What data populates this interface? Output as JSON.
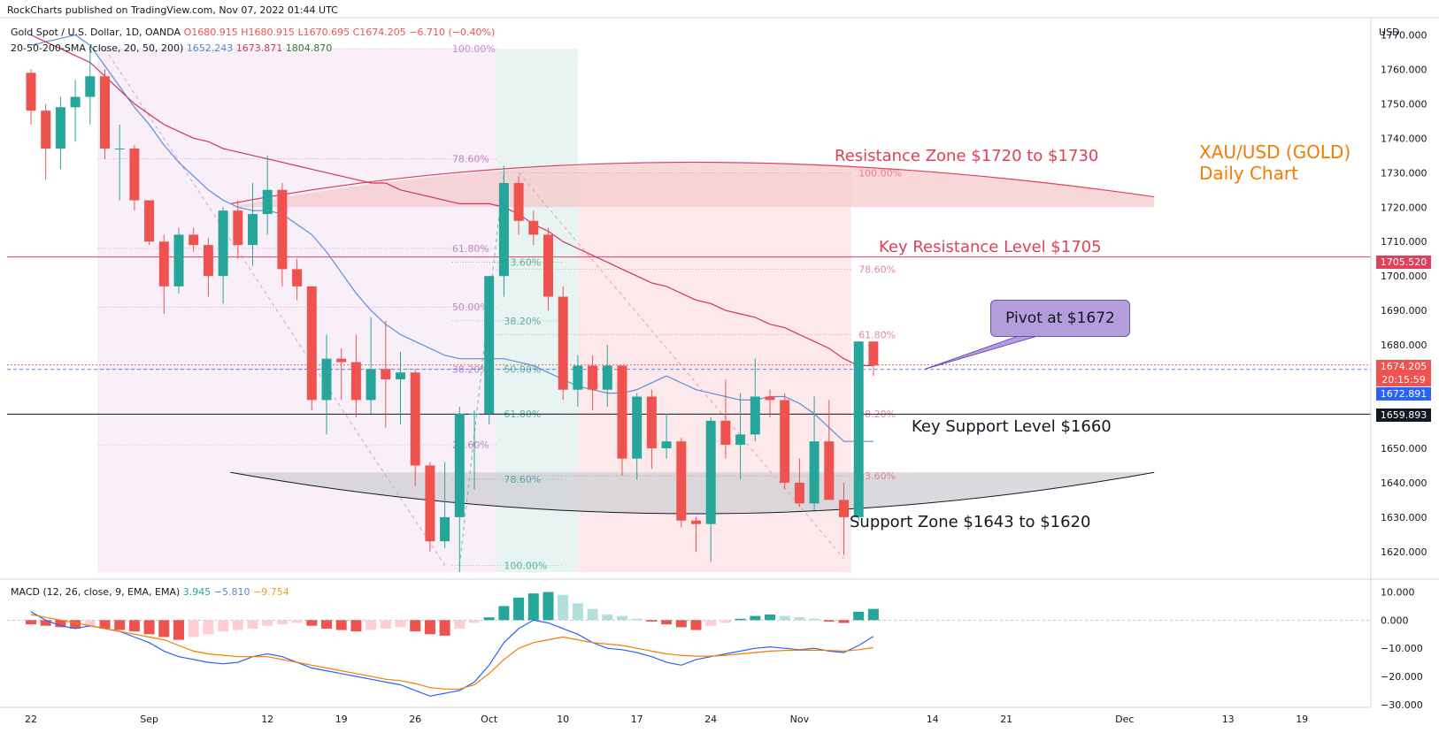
{
  "header": {
    "publisher": "RockCharts published on TradingView.com, Nov 07, 2022 01:44 UTC",
    "symbol": "Gold Spot / U.S. Dollar, 1D, OANDA",
    "open": "O1680.915",
    "high": "H1680.915",
    "low": "L1670.695",
    "close": "C1674.205",
    "change": "−6.710 (−0.40%)",
    "sma_label": "20-50-200-SMA (close, 20, 50, 200)",
    "sma20": "1652.243",
    "sma50": "1673.871",
    "sma200": "1804.870",
    "macd_label": "MACD (12, 26, close, 9, EMA, EMA)",
    "macd_hist": "3.945",
    "macd_line": "−5.810",
    "macd_signal": "−9.754"
  },
  "annotations": {
    "title": "XAU/USD (GOLD)\nDaily Chart",
    "title_line1": "XAU/USD (GOLD)",
    "title_line2": "Daily Chart",
    "resistance_zone": "Resistance Zone $1720 to $1730",
    "key_resistance": "Key Resistance Level $1705",
    "pivot": "Pivot at $1672",
    "key_support": "Key Support Level $1660",
    "support_zone": "Support Zone $1643 to $1620"
  },
  "price_tags": {
    "resistance": "1705.520",
    "last": "1674.205",
    "countdown": "20:15:59",
    "sma": "1672.891",
    "support": "1659.893"
  },
  "colors": {
    "up": "#26a69a",
    "down": "#ef5350",
    "sma20": "#5b8fd9",
    "sma50": "#d2345a",
    "resistance": "#e0405a",
    "support_zone": "#cfcfd4",
    "resistance_zone": "#f6c9cd",
    "macd_line": "#2962ff",
    "signal_line": "#f57c00",
    "fib": "#c2185b"
  },
  "chart_data": {
    "type": "candlestick",
    "price_axis": {
      "label": "USD",
      "ylim": [
        1612,
        1775
      ],
      "ticks": [
        1620,
        1630,
        1640,
        1650,
        1660,
        1670,
        1680,
        1690,
        1700,
        1710,
        1720,
        1730,
        1740,
        1750,
        1760,
        1770
      ],
      "tick_labels": [
        "1620.000",
        "1630.000",
        "1640.000",
        "1650.000",
        "1660.000",
        "1670.000",
        "1680.000",
        "1690.000",
        "1700.000",
        "1710.000",
        "1720.000",
        "1730.000",
        "1740.000",
        "1750.000",
        "1760.000",
        "1770.000"
      ]
    },
    "x_ticks": [
      {
        "label": "22",
        "bar": 0
      },
      {
        "label": "Sep",
        "bar": 8
      },
      {
        "label": "12",
        "bar": 16
      },
      {
        "label": "19",
        "bar": 21
      },
      {
        "label": "26",
        "bar": 26
      },
      {
        "label": "Oct",
        "bar": 31
      },
      {
        "label": "10",
        "bar": 36
      },
      {
        "label": "17",
        "bar": 41
      },
      {
        "label": "24",
        "bar": 46
      },
      {
        "label": "Nov",
        "bar": 52
      },
      {
        "label": "14",
        "bar": 61
      },
      {
        "label": "21",
        "bar": 66
      },
      {
        "label": "Dec",
        "bar": 74
      },
      {
        "label": "13",
        "bar": 81
      },
      {
        "label": "19",
        "bar": 86
      }
    ],
    "candles": [
      [
        1759,
        1760,
        1744,
        1748
      ],
      [
        1748,
        1750,
        1728,
        1737
      ],
      [
        1737,
        1752,
        1731,
        1749
      ],
      [
        1749,
        1757,
        1739,
        1752
      ],
      [
        1752,
        1767,
        1744,
        1758
      ],
      [
        1758,
        1760,
        1734,
        1737
      ],
      [
        1737,
        1744,
        1722,
        1737
      ],
      [
        1737,
        1738,
        1719,
        1722
      ],
      [
        1722,
        1722,
        1709,
        1710
      ],
      [
        1710,
        1712,
        1689,
        1697
      ],
      [
        1697,
        1714,
        1695,
        1712
      ],
      [
        1712,
        1714,
        1707,
        1709
      ],
      [
        1709,
        1711,
        1694,
        1700
      ],
      [
        1700,
        1720,
        1692,
        1719
      ],
      [
        1719,
        1722,
        1705,
        1709
      ],
      [
        1709,
        1727,
        1703,
        1718
      ],
      [
        1718,
        1735,
        1712,
        1725
      ],
      [
        1725,
        1727,
        1697,
        1702
      ],
      [
        1702,
        1705,
        1693,
        1697
      ],
      [
        1697,
        1697,
        1661,
        1664
      ],
      [
        1664,
        1683,
        1654,
        1676
      ],
      [
        1676,
        1679,
        1664,
        1675
      ],
      [
        1675,
        1683,
        1659,
        1664
      ],
      [
        1664,
        1688,
        1660,
        1673
      ],
      [
        1673,
        1687,
        1656,
        1670
      ],
      [
        1670,
        1678,
        1657,
        1672
      ],
      [
        1672,
        1673,
        1639,
        1645
      ],
      [
        1645,
        1646,
        1620,
        1623
      ],
      [
        1623,
        1646,
        1621,
        1630
      ],
      [
        1630,
        1662,
        1614,
        1660
      ],
      [
        1660,
        1661,
        1638,
        1660
      ],
      [
        1660,
        1700,
        1657,
        1700
      ],
      [
        1700,
        1732,
        1694,
        1727
      ],
      [
        1727,
        1729,
        1712,
        1716
      ],
      [
        1716,
        1719,
        1709,
        1712
      ],
      [
        1712,
        1714,
        1690,
        1694
      ],
      [
        1694,
        1697,
        1664,
        1667
      ],
      [
        1667,
        1677,
        1662,
        1674
      ],
      [
        1674,
        1677,
        1661,
        1667
      ],
      [
        1667,
        1680,
        1662,
        1674
      ],
      [
        1674,
        1674,
        1642,
        1647
      ],
      [
        1647,
        1666,
        1641,
        1665
      ],
      [
        1665,
        1667,
        1644,
        1650
      ],
      [
        1650,
        1660,
        1647,
        1652
      ],
      [
        1652,
        1653,
        1627,
        1629
      ],
      [
        1629,
        1630,
        1620,
        1628
      ],
      [
        1628,
        1659,
        1617,
        1658
      ],
      [
        1658,
        1670,
        1647,
        1651
      ],
      [
        1651,
        1666,
        1641,
        1654
      ],
      [
        1654,
        1676,
        1652,
        1665
      ],
      [
        1665,
        1667,
        1659,
        1664
      ],
      [
        1664,
        1666,
        1638,
        1640
      ],
      [
        1640,
        1647,
        1633,
        1634
      ],
      [
        1634,
        1665,
        1632,
        1652
      ],
      [
        1652,
        1664,
        1635,
        1635
      ],
      [
        1635,
        1640,
        1619,
        1630
      ],
      [
        1630,
        1681,
        1629,
        1681
      ],
      [
        1681,
        1681,
        1671,
        1674
      ]
    ],
    "sma20": [
      1767,
      1768,
      1769,
      1770,
      1767,
      1761,
      1755,
      1749,
      1744,
      1738,
      1733,
      1729,
      1725,
      1722,
      1720,
      1719,
      1719,
      1718,
      1715,
      1712,
      1707,
      1701,
      1695,
      1690,
      1686,
      1683,
      1681,
      1679,
      1677,
      1676,
      1676,
      1676,
      1676,
      1675,
      1674,
      1672,
      1670,
      1668,
      1667,
      1666,
      1666,
      1667,
      1669,
      1671,
      1669,
      1667,
      1666,
      1665,
      1664,
      1664,
      1665,
      1665,
      1663,
      1660,
      1656,
      1652,
      1652,
      1652
    ],
    "sma50": [
      1770,
      1768,
      1766,
      1764,
      1762,
      1758,
      1754,
      1750,
      1747,
      1744,
      1742,
      1740,
      1739,
      1737,
      1736,
      1735,
      1734,
      1733,
      1732,
      1731,
      1730,
      1729,
      1728,
      1727,
      1727,
      1725,
      1724,
      1723,
      1722,
      1721,
      1721,
      1721,
      1720,
      1718,
      1715,
      1713,
      1710,
      1708,
      1706,
      1704,
      1702,
      1700,
      1698,
      1697,
      1695,
      1693,
      1692,
      1690,
      1689,
      1688,
      1686,
      1685,
      1683,
      1681,
      1679,
      1676,
      1674,
      1674
    ],
    "resistance_zone": [
      1720,
      1730
    ],
    "key_resistance": 1705.52,
    "pivot": 1672,
    "key_support": 1659.893,
    "support_zone": [
      1620,
      1643
    ],
    "fib_levels_1": [
      {
        "label": "100.00%",
        "value": 1766
      },
      {
        "label": "78.60%",
        "value": 1734
      },
      {
        "label": "61.80%",
        "value": 1708
      },
      {
        "label": "50.00%",
        "value": 1691
      },
      {
        "label": "38.20%",
        "value": 1673
      },
      {
        "label": "23.60%",
        "value": 1651
      }
    ],
    "fib_levels_2": [
      {
        "label": "23.60%",
        "value": 1704
      },
      {
        "label": "38.20%",
        "value": 1687
      },
      {
        "label": "50.00%",
        "value": 1673
      },
      {
        "label": "61.80%",
        "value": 1660
      },
      {
        "label": "78.60%",
        "value": 1641
      },
      {
        "label": "100.00%",
        "value": 1616
      }
    ],
    "fib_levels_3": [
      {
        "label": "100.00%",
        "value": 1730
      },
      {
        "label": "78.60%",
        "value": 1702
      },
      {
        "label": "61.80%",
        "value": 1683
      },
      {
        "label": "38.20%",
        "value": 1660
      },
      {
        "label": "23.60%",
        "value": 1642
      }
    ],
    "macd": {
      "ylim": [
        -31,
        13
      ],
      "ticks": [
        10,
        0,
        -10,
        -20,
        -30
      ],
      "tick_labels": [
        "10.000",
        "0.000",
        "−10.000",
        "−20.000",
        "−30.000"
      ],
      "histogram": [
        -1.5,
        -2,
        -2.5,
        -3,
        -2.5,
        -3,
        -3.5,
        -4,
        -5,
        -6,
        -7,
        -6,
        -5,
        -4,
        -3.5,
        -3,
        -2,
        -1.5,
        -1,
        -2,
        -3,
        -3.5,
        -4,
        -3.5,
        -3,
        -2.5,
        -4,
        -5,
        -5.5,
        -3,
        -1,
        1,
        5,
        8,
        9.5,
        10,
        9,
        6,
        4,
        2,
        1.5,
        0.5,
        -0.5,
        -1.5,
        -2.5,
        -3.5,
        -2,
        -1,
        0.5,
        1.5,
        2,
        1.5,
        1,
        0.5,
        -0.5,
        -1,
        3,
        4
      ],
      "macd_line": [
        3,
        0,
        -2,
        -3,
        -2,
        -3,
        -4,
        -6,
        -8,
        -11,
        -13,
        -14,
        -15,
        -15.5,
        -15,
        -13,
        -12,
        -13,
        -15,
        -17,
        -18,
        -19,
        -20,
        -21,
        -22,
        -23,
        -25,
        -27,
        -26,
        -25,
        -22,
        -16,
        -8,
        -3,
        0,
        -1,
        -3,
        -5,
        -8,
        -10,
        -10.5,
        -11.5,
        -13,
        -15,
        -16,
        -14,
        -13,
        -12,
        -11,
        -10,
        -9.5,
        -10,
        -10.5,
        -10,
        -11,
        -11.5,
        -9,
        -5.8
      ],
      "signal_line": [
        2,
        1,
        0,
        -1,
        -2,
        -3,
        -4,
        -5,
        -6,
        -7,
        -9,
        -11,
        -12,
        -12.5,
        -13,
        -13,
        -13,
        -14,
        -15,
        -16,
        -17,
        -18,
        -19,
        -20,
        -21,
        -21.5,
        -22.5,
        -24,
        -24.5,
        -24.5,
        -23,
        -19,
        -14,
        -10,
        -8,
        -7,
        -6,
        -7,
        -8,
        -8.5,
        -9,
        -10,
        -11,
        -12,
        -12.5,
        -12.8,
        -12.8,
        -12.5,
        -12,
        -11.5,
        -11,
        -10.8,
        -10.7,
        -10.7,
        -10.8,
        -11,
        -10.5,
        -9.75
      ]
    }
  }
}
